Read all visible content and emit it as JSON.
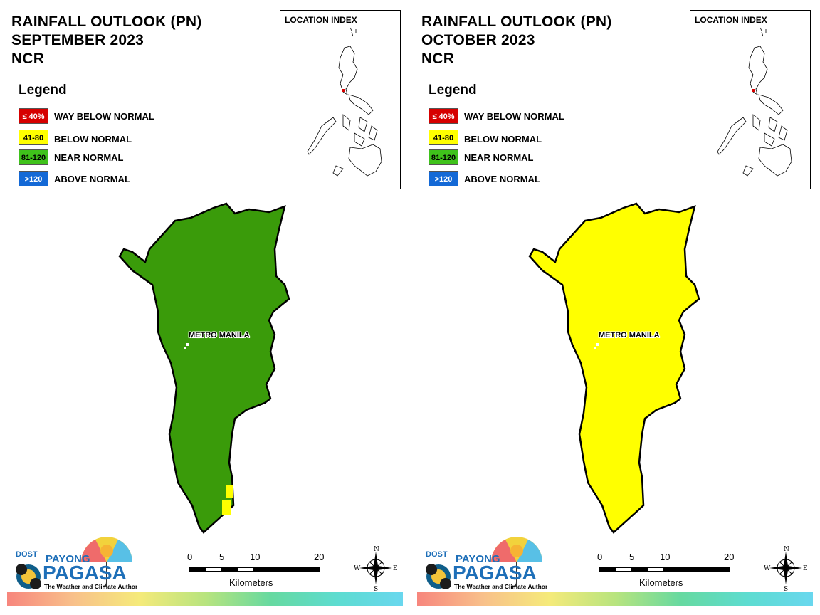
{
  "colors": {
    "way_below": "#d60000",
    "below": "#ffff00",
    "near": "#3a9b0a",
    "above": "#1469d6"
  },
  "legend": {
    "title": "Legend",
    "items": [
      {
        "range": "≤ 40%",
        "label": "WAY BELOW NORMAL"
      },
      {
        "range": "41-80",
        "label": "BELOW NORMAL"
      },
      {
        "range": "81-120",
        "label": "NEAR NORMAL"
      },
      {
        "range": ">120",
        "label": "ABOVE NORMAL"
      }
    ]
  },
  "panels": [
    {
      "title_line1": "RAINFALL OUTLOOK (PN)",
      "title_line2": "SEPTEMBER 2023",
      "title_line3": "NCR",
      "map_category": "near"
    },
    {
      "title_line1": "RAINFALL OUTLOOK (PN)",
      "title_line2": "OCTOBER 2023",
      "title_line3": "NCR",
      "map_category": "below"
    }
  ],
  "location_index_title": "LOCATION INDEX",
  "region_label": "METRO MANILA",
  "scalebar": {
    "ticks": [
      "0",
      "5",
      "10",
      "20"
    ],
    "unit": "Kilometers"
  },
  "compass": {
    "n": "N",
    "s": "S",
    "e": "E",
    "w": "W"
  },
  "logo": {
    "dost": "DOST",
    "payong": "PAYONG",
    "pagasa": "PAGASA",
    "tagline": "The Weather and Climate Authority"
  }
}
